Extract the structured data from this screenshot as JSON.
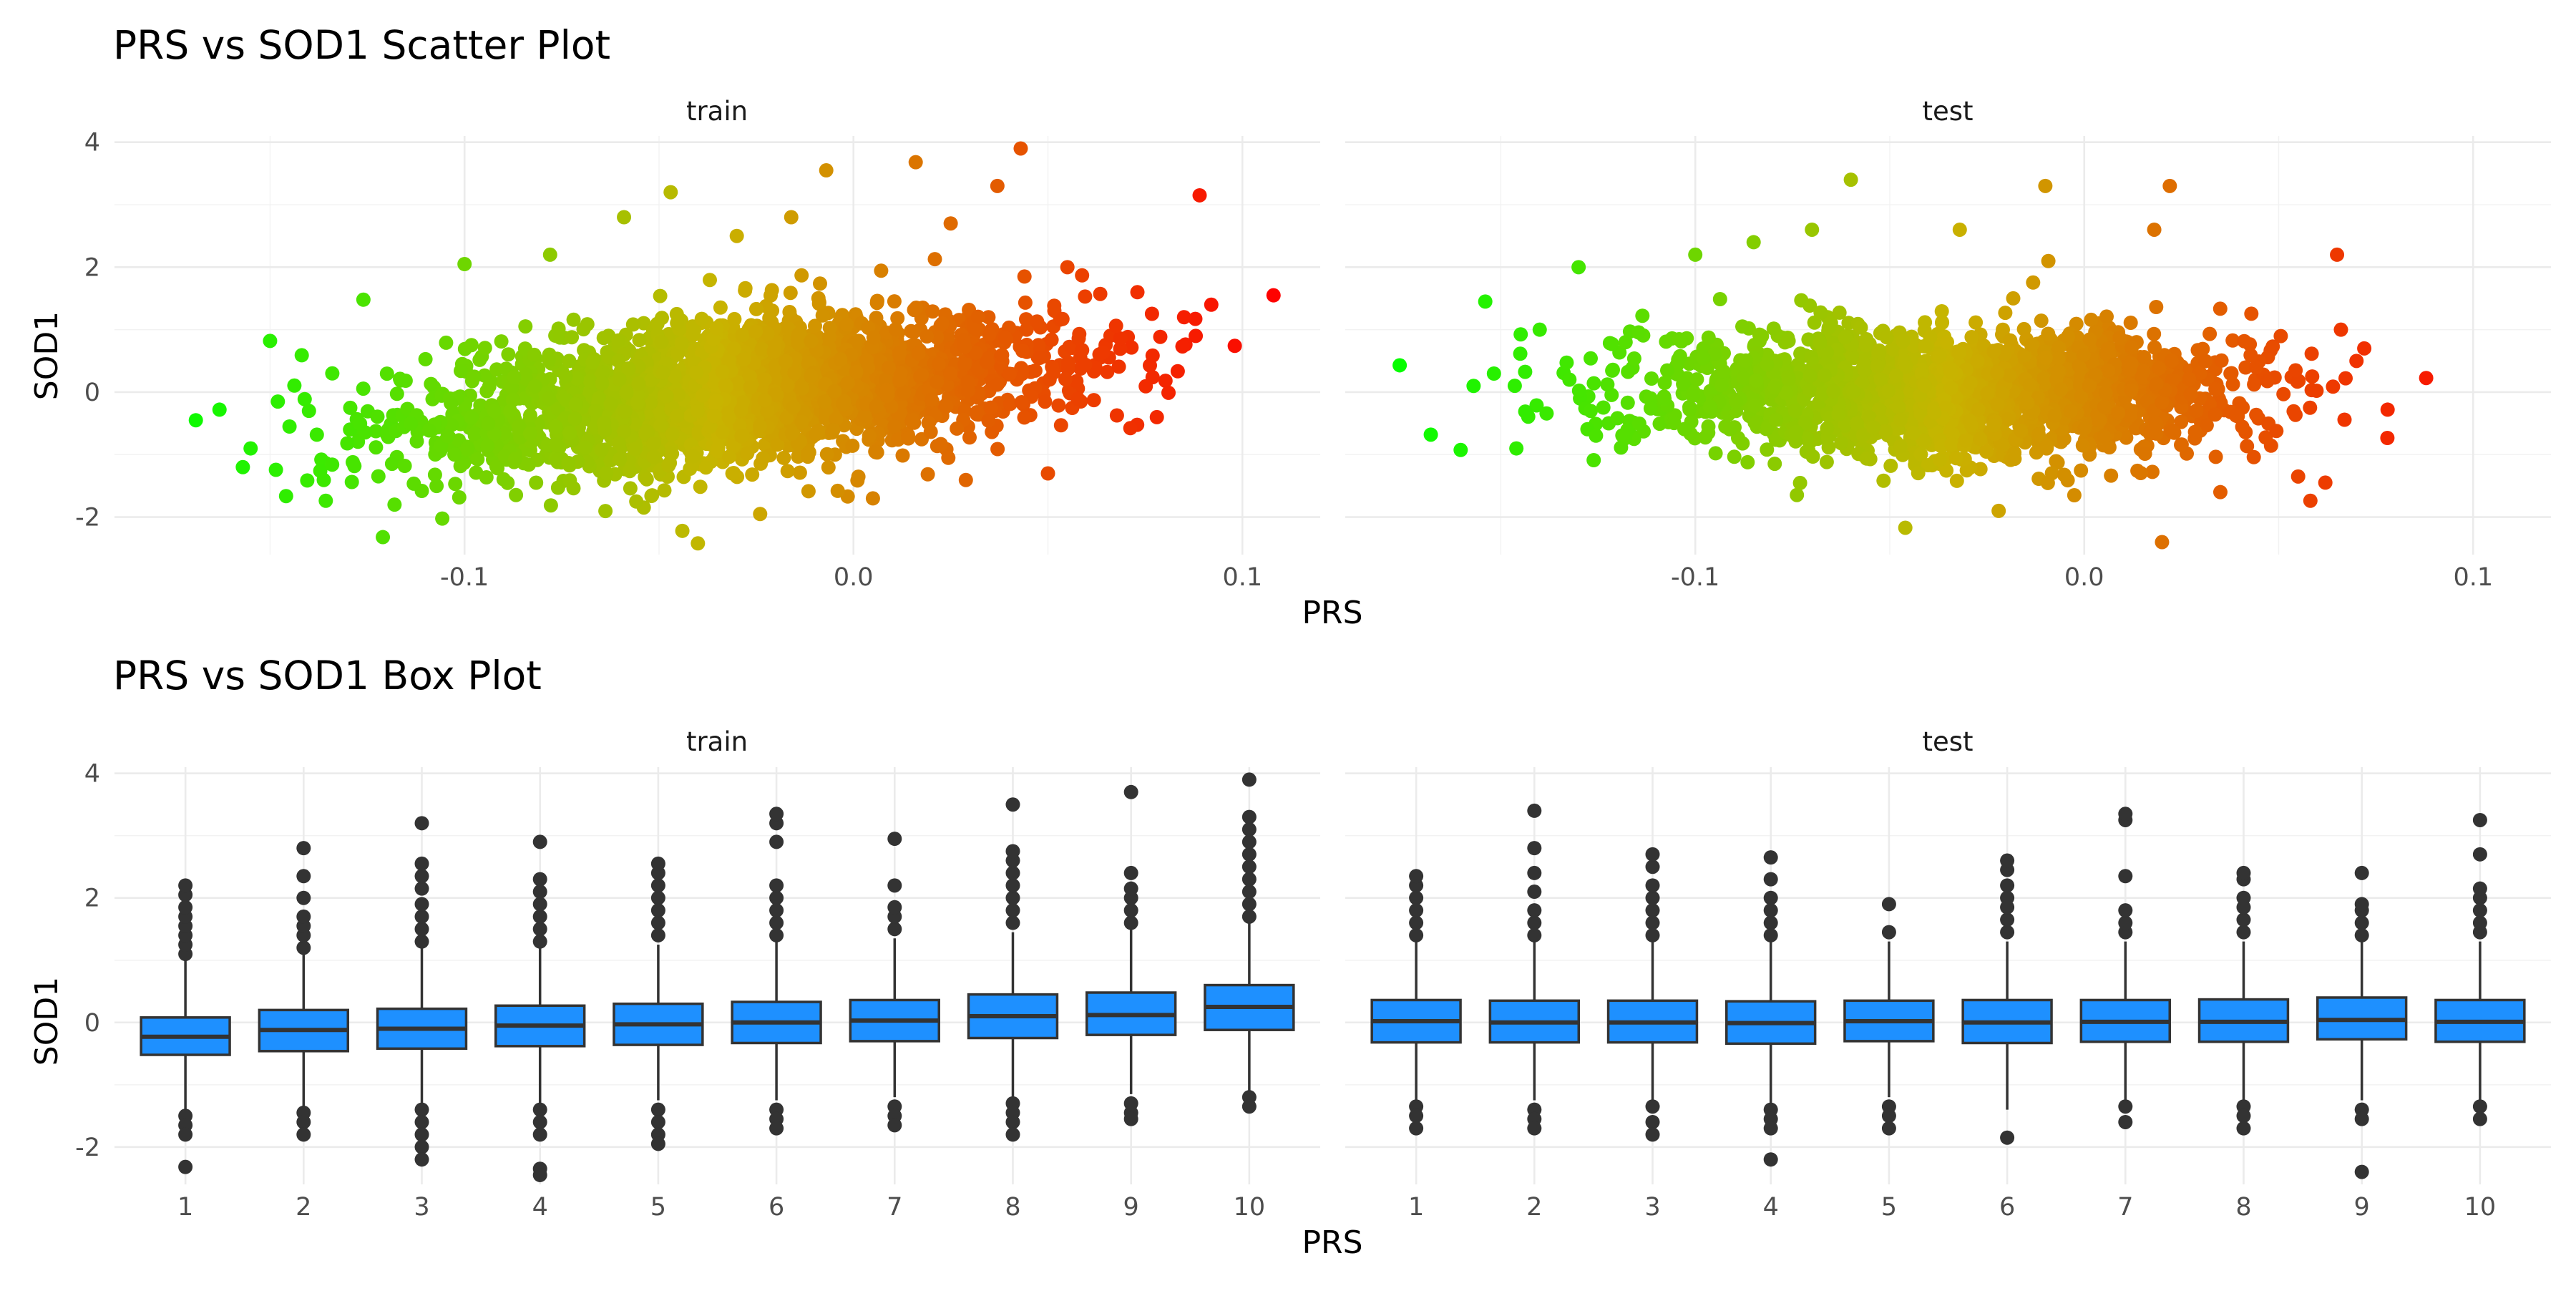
{
  "chart_data": [
    {
      "type": "scatter",
      "title": "PRS vs SOD1 Scatter Plot",
      "xlabel": "PRS",
      "ylabel": "SOD1",
      "facets": [
        "train",
        "test"
      ],
      "xlim": [
        -0.19,
        0.12
      ],
      "ylim": [
        -2.6,
        4.1
      ],
      "xticks": [
        -0.1,
        0.0,
        0.1
      ],
      "xtick_labels": [
        "-0.1",
        "0.0",
        "0.1"
      ],
      "yticks": [
        -2,
        0,
        2,
        4
      ],
      "ytick_labels": [
        "-2",
        "0",
        "2",
        "4"
      ],
      "color_scale": {
        "low": "#00ff00",
        "mid": "#c8b400",
        "high": "#ff0000",
        "domain": [
          -0.18,
          0.11
        ]
      },
      "grid": true,
      "series": [
        {
          "facet": "train",
          "points": [
            [
              -0.163,
              -0.28
            ],
            [
              -0.157,
              -1.2
            ],
            [
              -0.155,
              -0.9
            ],
            [
              -0.15,
              0.82
            ],
            [
              -0.148,
              -0.15
            ],
            [
              -0.145,
              -0.55
            ],
            [
              -0.14,
              -0.3
            ],
            [
              -0.134,
              0.3
            ],
            [
              -0.126,
              1.48
            ],
            [
              -0.121,
              -2.32
            ],
            [
              -0.118,
              -1.8
            ],
            [
              -0.1,
              2.05
            ],
            [
              -0.078,
              2.2
            ],
            [
              -0.059,
              2.8
            ],
            [
              -0.047,
              3.2
            ],
            [
              -0.044,
              -2.22
            ],
            [
              -0.04,
              -2.42
            ],
            [
              -0.03,
              2.5
            ],
            [
              -0.024,
              -1.95
            ],
            [
              -0.016,
              2.8
            ],
            [
              -0.007,
              3.55
            ],
            [
              0.005,
              -1.7
            ],
            [
              0.016,
              3.68
            ],
            [
              0.025,
              2.7
            ],
            [
              0.037,
              3.3
            ],
            [
              0.043,
              3.9
            ],
            [
              0.05,
              -1.3
            ],
            [
              0.055,
              2.0
            ],
            [
              0.073,
              1.6
            ],
            [
              0.081,
              -0.01
            ],
            [
              0.089,
              3.15
            ],
            [
              0.092,
              1.4
            ],
            [
              0.108,
              1.55
            ],
            [
              0.085,
              1.2
            ],
            [
              0.088,
              0.9
            ],
            [
              0.078,
              -0.4
            ]
          ]
        },
        {
          "facet": "test",
          "points": [
            [
              -0.176,
              0.43
            ],
            [
              -0.168,
              -0.68
            ],
            [
              -0.157,
              0.1
            ],
            [
              -0.154,
              1.45
            ],
            [
              -0.146,
              -0.9
            ],
            [
              -0.14,
              1.0
            ],
            [
              -0.13,
              2.0
            ],
            [
              -0.118,
              -0.7
            ],
            [
              -0.1,
              2.2
            ],
            [
              -0.085,
              2.4
            ],
            [
              -0.07,
              2.6
            ],
            [
              -0.06,
              3.4
            ],
            [
              -0.046,
              -2.17
            ],
            [
              -0.032,
              2.6
            ],
            [
              -0.022,
              -1.9
            ],
            [
              -0.01,
              3.3
            ],
            [
              0.018,
              2.6
            ],
            [
              0.02,
              -2.4
            ],
            [
              0.022,
              3.3
            ],
            [
              0.035,
              -1.6
            ],
            [
              0.055,
              -1.35
            ],
            [
              0.065,
              2.2
            ],
            [
              0.066,
              1.0
            ],
            [
              0.07,
              0.5
            ],
            [
              0.078,
              -0.28
            ],
            [
              0.072,
              0.7
            ]
          ]
        }
      ]
    },
    {
      "type": "box",
      "title": "PRS vs SOD1 Box Plot",
      "xlabel": "PRS",
      "ylabel": "SOD1",
      "facets": [
        "train",
        "test"
      ],
      "categories": [
        "1",
        "2",
        "3",
        "4",
        "5",
        "6",
        "7",
        "8",
        "9",
        "10"
      ],
      "ylim": [
        -2.6,
        4.1
      ],
      "yticks": [
        -2,
        0,
        2,
        4
      ],
      "ytick_labels": [
        "-2",
        "0",
        "2",
        "4"
      ],
      "fill": "#1e90ff",
      "grid": true,
      "series": [
        {
          "facet": "train",
          "boxes": [
            {
              "category": "1",
              "q1": -0.52,
              "median": -0.23,
              "q3": 0.08,
              "whisker_low": -1.4,
              "whisker_high": 1.0,
              "outliers": [
                1.1,
                1.25,
                1.4,
                1.55,
                1.7,
                1.85,
                2.05,
                2.2,
                -1.5,
                -1.65,
                -1.8,
                -2.32
              ]
            },
            {
              "category": "2",
              "q1": -0.46,
              "median": -0.12,
              "q3": 0.2,
              "whisker_low": -1.35,
              "whisker_high": 1.1,
              "outliers": [
                1.2,
                1.4,
                1.55,
                1.7,
                2.0,
                2.35,
                2.8,
                -1.45,
                -1.6,
                -1.8
              ]
            },
            {
              "category": "3",
              "q1": -0.42,
              "median": -0.1,
              "q3": 0.22,
              "whisker_low": -1.3,
              "whisker_high": 1.2,
              "outliers": [
                1.3,
                1.5,
                1.7,
                1.9,
                2.15,
                2.35,
                2.55,
                3.2,
                -1.4,
                -1.6,
                -1.8,
                -2.0,
                -2.2
              ]
            },
            {
              "category": "4",
              "q1": -0.38,
              "median": -0.05,
              "q3": 0.27,
              "whisker_low": -1.3,
              "whisker_high": 1.2,
              "outliers": [
                1.3,
                1.5,
                1.7,
                1.9,
                2.1,
                2.3,
                2.9,
                -1.4,
                -1.6,
                -1.8,
                -2.35,
                -2.45
              ]
            },
            {
              "category": "5",
              "q1": -0.36,
              "median": -0.03,
              "q3": 0.3,
              "whisker_low": -1.25,
              "whisker_high": 1.25,
              "outliers": [
                1.4,
                1.6,
                1.8,
                2.0,
                2.2,
                2.4,
                2.55,
                -1.4,
                -1.6,
                -1.8,
                -1.95
              ]
            },
            {
              "category": "6",
              "q1": -0.33,
              "median": 0.0,
              "q3": 0.33,
              "whisker_low": -1.25,
              "whisker_high": 1.3,
              "outliers": [
                1.4,
                1.6,
                1.8,
                2.0,
                2.2,
                2.9,
                3.2,
                3.35,
                -1.4,
                -1.55,
                -1.7
              ]
            },
            {
              "category": "7",
              "q1": -0.3,
              "median": 0.03,
              "q3": 0.36,
              "whisker_low": -1.2,
              "whisker_high": 1.35,
              "outliers": [
                1.5,
                1.7,
                1.85,
                2.2,
                2.95,
                -1.35,
                -1.5,
                -1.65
              ]
            },
            {
              "category": "8",
              "q1": -0.25,
              "median": 0.1,
              "q3": 0.45,
              "whisker_low": -1.2,
              "whisker_high": 1.45,
              "outliers": [
                1.6,
                1.8,
                2.0,
                2.2,
                2.4,
                2.6,
                2.75,
                3.5,
                -1.3,
                -1.45,
                -1.6,
                -1.8
              ]
            },
            {
              "category": "9",
              "q1": -0.2,
              "median": 0.12,
              "q3": 0.48,
              "whisker_low": -1.15,
              "whisker_high": 1.5,
              "outliers": [
                1.6,
                1.8,
                2.0,
                2.15,
                2.4,
                3.7,
                -1.3,
                -1.45,
                -1.55
              ]
            },
            {
              "category": "10",
              "q1": -0.12,
              "median": 0.25,
              "q3": 0.6,
              "whisker_low": -1.1,
              "whisker_high": 1.6,
              "outliers": [
                1.7,
                1.9,
                2.1,
                2.3,
                2.5,
                2.7,
                2.9,
                3.1,
                3.3,
                3.9,
                -1.2,
                -1.35
              ]
            }
          ]
        },
        {
          "facet": "test",
          "boxes": [
            {
              "category": "1",
              "q1": -0.32,
              "median": 0.02,
              "q3": 0.36,
              "whisker_low": -1.25,
              "whisker_high": 1.3,
              "outliers": [
                1.4,
                1.6,
                1.8,
                2.0,
                2.2,
                2.35,
                -1.35,
                -1.5,
                -1.7
              ]
            },
            {
              "category": "2",
              "q1": -0.32,
              "median": 0.0,
              "q3": 0.35,
              "whisker_low": -1.25,
              "whisker_high": 1.3,
              "outliers": [
                1.4,
                1.6,
                1.8,
                2.1,
                2.4,
                2.8,
                3.4,
                -1.4,
                -1.55,
                -1.7
              ]
            },
            {
              "category": "3",
              "q1": -0.32,
              "median": 0.0,
              "q3": 0.35,
              "whisker_low": -1.25,
              "whisker_high": 1.3,
              "outliers": [
                1.4,
                1.6,
                1.8,
                2.0,
                2.2,
                2.5,
                2.7,
                -1.35,
                -1.6,
                -1.8
              ]
            },
            {
              "category": "4",
              "q1": -0.34,
              "median": -0.01,
              "q3": 0.34,
              "whisker_low": -1.3,
              "whisker_high": 1.3,
              "outliers": [
                1.4,
                1.6,
                1.8,
                2.0,
                2.3,
                2.65,
                -1.4,
                -1.55,
                -1.7,
                -2.2
              ]
            },
            {
              "category": "5",
              "q1": -0.3,
              "median": 0.02,
              "q3": 0.35,
              "whisker_low": -1.2,
              "whisker_high": 1.3,
              "outliers": [
                1.45,
                1.9,
                -1.35,
                -1.5,
                -1.7
              ]
            },
            {
              "category": "6",
              "q1": -0.33,
              "median": 0.0,
              "q3": 0.36,
              "whisker_low": -1.4,
              "whisker_high": 1.3,
              "outliers": [
                1.45,
                1.65,
                1.85,
                2.0,
                2.2,
                2.45,
                2.6,
                -1.85
              ]
            },
            {
              "category": "7",
              "q1": -0.31,
              "median": 0.01,
              "q3": 0.36,
              "whisker_low": -1.25,
              "whisker_high": 1.3,
              "outliers": [
                1.45,
                1.6,
                1.8,
                2.35,
                3.25,
                3.35,
                -1.35,
                -1.6
              ]
            },
            {
              "category": "8",
              "q1": -0.31,
              "median": 0.01,
              "q3": 0.37,
              "whisker_low": -1.25,
              "whisker_high": 1.3,
              "outliers": [
                1.45,
                1.65,
                1.85,
                2.0,
                2.3,
                2.4,
                -1.35,
                -1.5,
                -1.7
              ]
            },
            {
              "category": "9",
              "q1": -0.27,
              "median": 0.04,
              "q3": 0.4,
              "whisker_low": -1.25,
              "whisker_high": 1.3,
              "outliers": [
                1.4,
                1.6,
                1.8,
                1.9,
                2.4,
                -1.4,
                -1.55,
                -2.4
              ]
            },
            {
              "category": "10",
              "q1": -0.31,
              "median": 0.01,
              "q3": 0.36,
              "whisker_low": -1.25,
              "whisker_high": 1.3,
              "outliers": [
                1.45,
                1.6,
                1.8,
                2.0,
                2.15,
                2.7,
                3.25,
                -1.35,
                -1.55
              ]
            }
          ]
        }
      ]
    }
  ]
}
